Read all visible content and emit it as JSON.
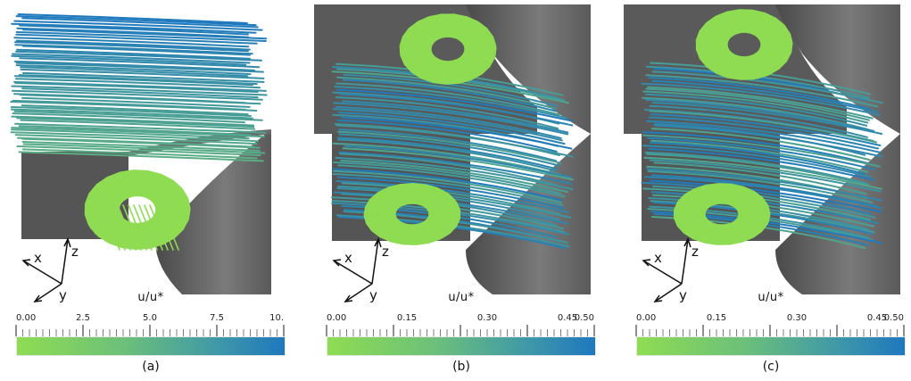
{
  "figures": [
    {
      "id": "a",
      "caption": "(a)",
      "colorbar_title": "u/u*",
      "colorbar_ticks": [
        "0.00",
        "2.5",
        "5.0",
        "7.5",
        "10."
      ],
      "axis_labels": {
        "x": "x",
        "y": "y",
        "z": "z"
      }
    },
    {
      "id": "b",
      "caption": "(b)",
      "colorbar_title": "u/u*",
      "colorbar_ticks": [
        "0.00",
        "0.15",
        "0.30",
        "0.45",
        "0.50"
      ],
      "axis_labels": {
        "x": "x",
        "y": "y",
        "z": "z"
      }
    },
    {
      "id": "c",
      "caption": "(c)",
      "colorbar_title": "u/u*",
      "colorbar_ticks": [
        "0.00",
        "0.15",
        "0.30",
        "0.45",
        "0.50"
      ],
      "axis_labels": {
        "x": "x",
        "y": "y",
        "z": "z"
      }
    }
  ],
  "colors": {
    "low": "#8fdc52",
    "high": "#1e78be",
    "obstacle": "#5f5f5f"
  }
}
